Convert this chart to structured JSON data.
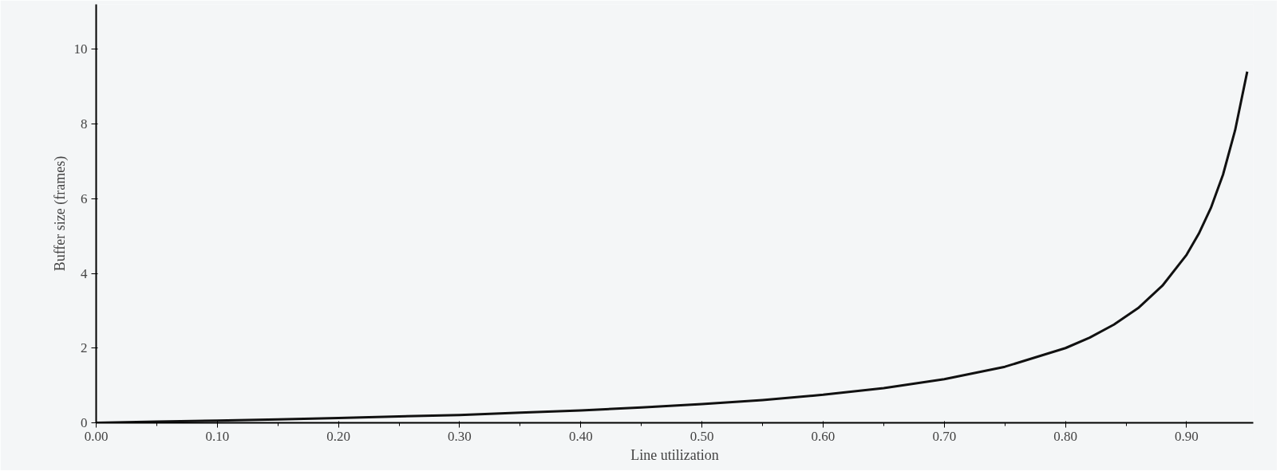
{
  "chart_data": {
    "type": "line",
    "xlabel": "Line utilization",
    "ylabel": "Buffer size (frames)",
    "x": [
      0,
      0.05,
      0.1,
      0.15,
      0.2,
      0.25,
      0.3,
      0.35,
      0.4,
      0.45,
      0.5,
      0.55,
      0.6,
      0.65,
      0.7,
      0.75,
      0.8,
      0.82,
      0.84,
      0.86,
      0.88,
      0.9,
      0.91,
      0.92,
      0.93,
      0.94,
      0.95
    ],
    "series": [
      {
        "color": "#111111",
        "values": [
          0,
          0.03,
          0.06,
          0.09,
          0.13,
          0.17,
          0.21,
          0.27,
          0.33,
          0.41,
          0.5,
          0.61,
          0.75,
          0.93,
          1.17,
          1.5,
          2,
          2.28,
          2.63,
          3.07,
          3.67,
          4.5,
          5.06,
          5.75,
          6.64,
          7.83,
          9.4
        ]
      }
    ],
    "xlim": [
      0,
      0.955
    ],
    "ylim": [
      0,
      11.2
    ],
    "xticks": [
      {
        "value": 0,
        "label": "0.00"
      },
      {
        "value": 0.1,
        "label": "0.10"
      },
      {
        "value": 0.2,
        "label": "0.20"
      },
      {
        "value": 0.3,
        "label": "0.30"
      },
      {
        "value": 0.4,
        "label": "0.40"
      },
      {
        "value": 0.5,
        "label": "0.50"
      },
      {
        "value": 0.6,
        "label": "0.60"
      },
      {
        "value": 0.7,
        "label": "0.70"
      },
      {
        "value": 0.8,
        "label": "0.80"
      },
      {
        "value": 0.9,
        "label": "0.90"
      }
    ],
    "yticks": [
      0,
      2,
      4,
      6,
      8,
      10
    ],
    "grid": false,
    "line_style": "solid"
  }
}
